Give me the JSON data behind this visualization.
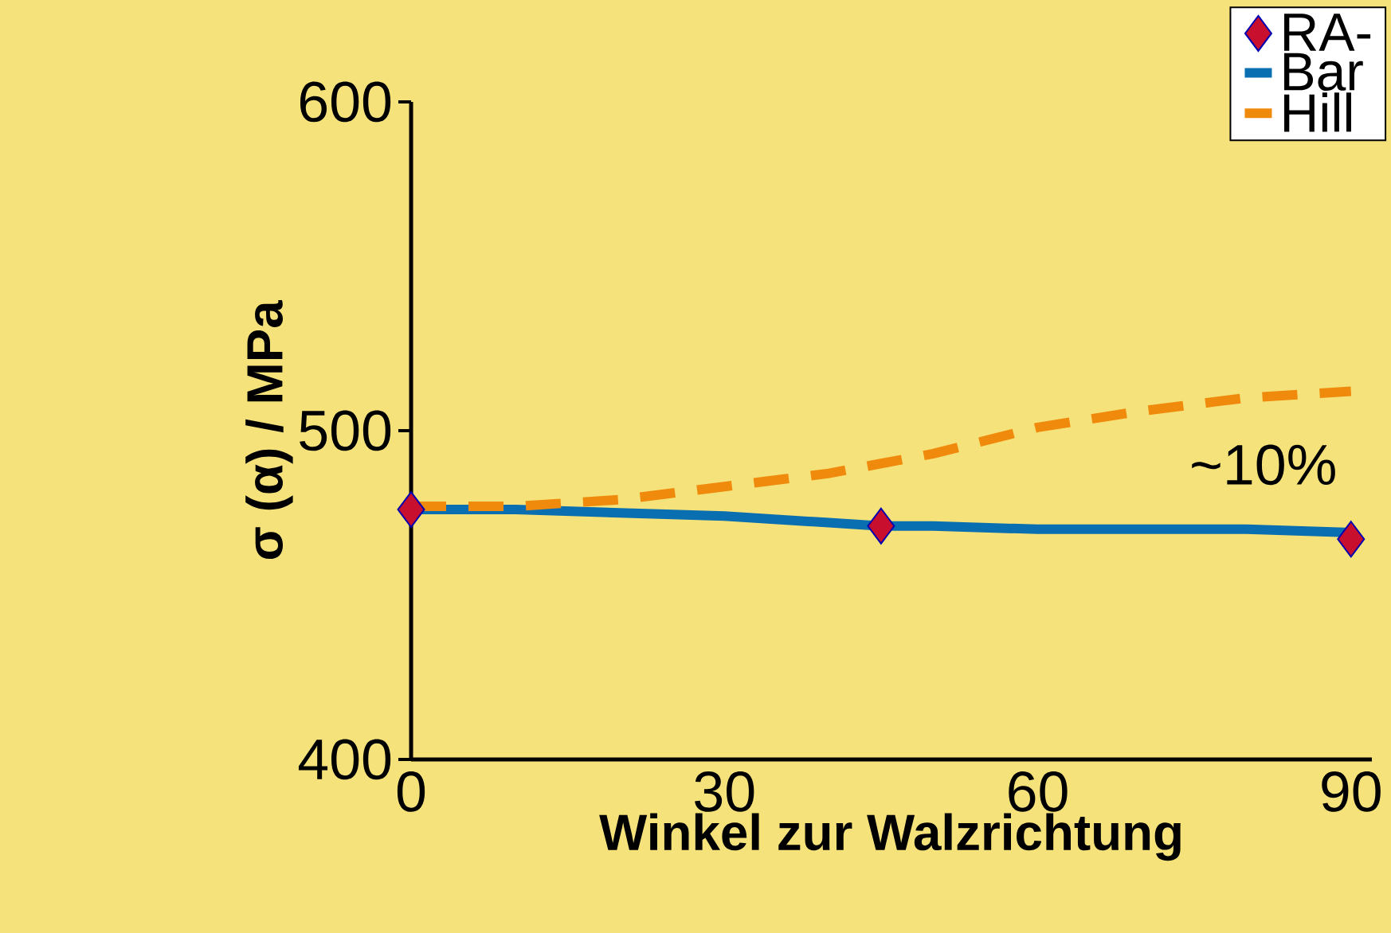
{
  "chart_data": {
    "type": "line",
    "xlabel": "Winkel zur Walzrichtung",
    "ylabel": "σ (α) / MPa",
    "annotations": [
      "~10%"
    ],
    "xlim": [
      0,
      92
    ],
    "ylim": [
      400,
      600
    ],
    "xticks": [
      0,
      30,
      60,
      90
    ],
    "yticks": [
      400,
      500,
      600
    ],
    "legend": "top right",
    "series": [
      {
        "name": "RA-",
        "type": "scatter",
        "marker": "diamond",
        "color": "#c8102e",
        "x": [
          0,
          45,
          90
        ],
        "values": [
          476,
          471,
          467
        ]
      },
      {
        "name": "Bar",
        "type": "line",
        "line_style": "solid",
        "color": "#0a6fb0",
        "x": [
          0,
          10,
          20,
          30,
          40,
          45,
          50,
          60,
          70,
          80,
          90
        ],
        "values": [
          476,
          476,
          475,
          474,
          472,
          471,
          471,
          470,
          470,
          470,
          469
        ]
      },
      {
        "name": "Hill",
        "type": "line",
        "line_style": "dashed",
        "color": "#f08a0c",
        "x": [
          0,
          10,
          20,
          30,
          40,
          45,
          50,
          60,
          70,
          80,
          90
        ],
        "values": [
          477,
          477,
          479,
          483,
          487,
          490,
          493,
          501,
          506,
          510,
          512
        ]
      }
    ]
  }
}
